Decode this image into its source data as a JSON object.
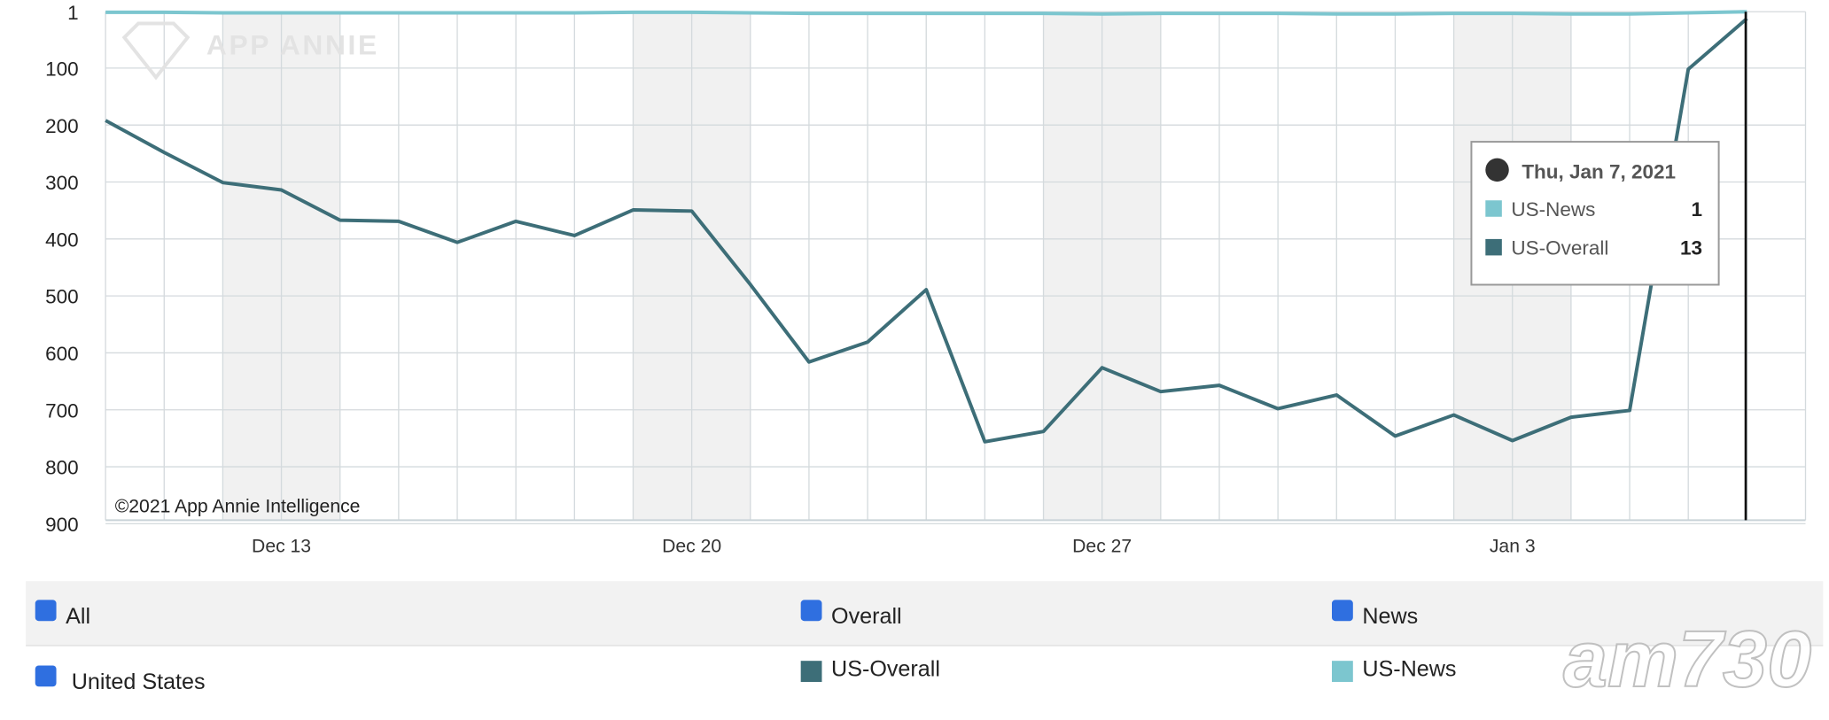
{
  "chart_data": {
    "type": "line",
    "categories": [
      null,
      null,
      null,
      "Dec 13",
      null,
      null,
      null,
      null,
      null,
      null,
      "Dec 20",
      null,
      null,
      null,
      null,
      null,
      null,
      "Dec 27",
      null,
      null,
      null,
      null,
      null,
      null,
      "Jan 3",
      null,
      null,
      null,
      null
    ],
    "series": [
      {
        "name": "US-Overall",
        "color": "#3d6e78",
        "values": [
          192,
          248,
          301,
          314,
          367,
          369,
          406,
          369,
          394,
          349,
          351,
          480,
          616,
          581,
          489,
          756,
          738,
          626,
          668,
          657,
          698,
          674,
          746,
          709,
          754,
          713,
          701,
          102,
          13
        ]
      },
      {
        "name": "US-News",
        "color": "#7cc6cf",
        "values": [
          2,
          2,
          3,
          3,
          3,
          3,
          3,
          3,
          3,
          2,
          2,
          3,
          4,
          4,
          4,
          4,
          4,
          5,
          4,
          4,
          4,
          5,
          5,
          4,
          4,
          5,
          5,
          3,
          1
        ]
      }
    ],
    "ylim": [
      1,
      900
    ],
    "yticks": [
      1,
      100,
      200,
      300,
      400,
      500,
      600,
      700,
      800,
      900
    ],
    "y_reverse": true,
    "grid": true,
    "tooltip": {
      "title": "Thu, Jan 7, 2021"
    },
    "watermark": "APP ANNIE",
    "copyright": "©2021 App Annie Intelligence"
  },
  "controls": {
    "filters": [
      "All",
      "Overall",
      "News",
      "United States"
    ]
  },
  "overlay": "am730"
}
